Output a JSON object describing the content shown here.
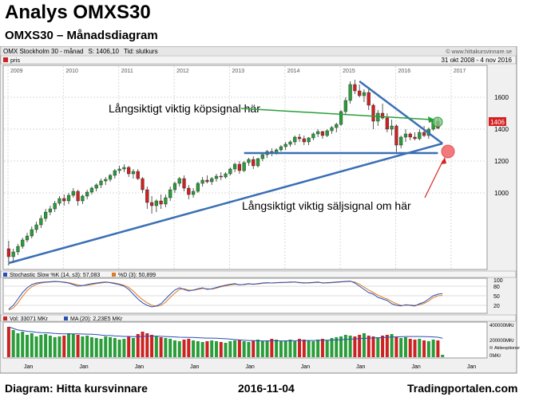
{
  "heading": {
    "title": "Analys OMXS30",
    "subtitle": "OMXS30 – Månadsdiagram"
  },
  "footer": {
    "left": "Diagram: Hitta kursvinnare",
    "center": "2016-11-04",
    "right": "Tradingportalen.com"
  },
  "chart_header": {
    "instrument": "OMX Stockholm 30",
    "period": "månad",
    "s_label": "S:",
    "s_value": "1406,10",
    "tid_label": "Tid:",
    "tid_value": "slutkurs",
    "watermark": "© www.hittakursvinnare.se",
    "date_range": "31 okt 2008 - 4 nov 2016",
    "series_label": "pris"
  },
  "annotations": {
    "buy": "Långsiktigt viktig köpsignal här",
    "sell": "Långsiktigt viktig säljsignal om här"
  },
  "colors": {
    "up": "#2a9d3a",
    "down": "#cc2222",
    "trendline": "#3a6fb5",
    "buy_arrow": "#2a9d3a",
    "sell_arrow": "#dd2222",
    "price_tag": "#d62020"
  },
  "chart_data": {
    "type": "candlestick",
    "years": [
      "2009",
      "2010",
      "2011",
      "2012",
      "2013",
      "2014",
      "2015",
      "2016",
      "2017"
    ],
    "y_ticks": [
      1000,
      1200,
      1400,
      1600
    ],
    "ylim": [
      520,
      1800
    ],
    "last_price": "1406",
    "x_month_labels": [
      "Jan",
      "Jan",
      "Jan",
      "Jan",
      "Jan",
      "Jan",
      "Jan",
      "Jan",
      "Jan"
    ],
    "ohlc": [
      [
        650,
        700,
        545,
        600
      ],
      [
        600,
        650,
        560,
        630
      ],
      [
        630,
        680,
        610,
        665
      ],
      [
        665,
        720,
        650,
        705
      ],
      [
        705,
        750,
        690,
        730
      ],
      [
        730,
        790,
        715,
        770
      ],
      [
        770,
        820,
        750,
        800
      ],
      [
        800,
        860,
        780,
        840
      ],
      [
        840,
        900,
        820,
        880
      ],
      [
        880,
        920,
        860,
        900
      ],
      [
        900,
        950,
        880,
        935
      ],
      [
        935,
        980,
        920,
        965
      ],
      [
        965,
        990,
        920,
        950
      ],
      [
        950,
        1000,
        930,
        985
      ],
      [
        985,
        1030,
        970,
        1010
      ],
      [
        1010,
        1020,
        920,
        950
      ],
      [
        950,
        990,
        930,
        980
      ],
      [
        980,
        1020,
        960,
        1005
      ],
      [
        1005,
        1040,
        990,
        1030
      ],
      [
        1030,
        1060,
        1010,
        1050
      ],
      [
        1050,
        1090,
        1030,
        1075
      ],
      [
        1075,
        1100,
        1050,
        1085
      ],
      [
        1085,
        1120,
        1070,
        1110
      ],
      [
        1110,
        1150,
        1090,
        1140
      ],
      [
        1140,
        1170,
        1120,
        1150
      ],
      [
        1150,
        1180,
        1130,
        1160
      ],
      [
        1160,
        1170,
        1100,
        1120
      ],
      [
        1120,
        1150,
        1090,
        1135
      ],
      [
        1135,
        1150,
        1080,
        1090
      ],
      [
        1090,
        1100,
        1000,
        1020
      ],
      [
        1020,
        1040,
        900,
        940
      ],
      [
        940,
        980,
        870,
        920
      ],
      [
        920,
        960,
        880,
        950
      ],
      [
        950,
        990,
        900,
        930
      ],
      [
        930,
        990,
        910,
        970
      ],
      [
        970,
        1040,
        950,
        1020
      ],
      [
        1020,
        1070,
        1000,
        1060
      ],
      [
        1060,
        1100,
        1040,
        1090
      ],
      [
        1090,
        1110,
        1010,
        1030
      ],
      [
        1030,
        1050,
        960,
        990
      ],
      [
        990,
        1030,
        970,
        1010
      ],
      [
        1010,
        1070,
        1000,
        1060
      ],
      [
        1060,
        1100,
        1040,
        1080
      ],
      [
        1080,
        1110,
        1060,
        1070
      ],
      [
        1070,
        1100,
        1050,
        1090
      ],
      [
        1090,
        1120,
        1070,
        1105
      ],
      [
        1105,
        1130,
        1080,
        1100
      ],
      [
        1100,
        1130,
        1090,
        1120
      ],
      [
        1120,
        1160,
        1110,
        1150
      ],
      [
        1150,
        1190,
        1130,
        1180
      ],
      [
        1180,
        1200,
        1120,
        1140
      ],
      [
        1140,
        1200,
        1130,
        1190
      ],
      [
        1190,
        1220,
        1170,
        1210
      ],
      [
        1210,
        1230,
        1150,
        1170
      ],
      [
        1170,
        1220,
        1160,
        1215
      ],
      [
        1215,
        1250,
        1200,
        1240
      ],
      [
        1240,
        1270,
        1220,
        1260
      ],
      [
        1260,
        1280,
        1230,
        1250
      ],
      [
        1250,
        1280,
        1240,
        1270
      ],
      [
        1270,
        1300,
        1260,
        1290
      ],
      [
        1290,
        1320,
        1270,
        1305
      ],
      [
        1305,
        1330,
        1290,
        1320
      ],
      [
        1320,
        1360,
        1300,
        1350
      ],
      [
        1350,
        1370,
        1320,
        1340
      ],
      [
        1340,
        1360,
        1300,
        1320
      ],
      [
        1320,
        1350,
        1300,
        1345
      ],
      [
        1345,
        1380,
        1330,
        1370
      ],
      [
        1370,
        1400,
        1350,
        1385
      ],
      [
        1385,
        1390,
        1340,
        1360
      ],
      [
        1360,
        1400,
        1350,
        1390
      ],
      [
        1390,
        1420,
        1370,
        1410
      ],
      [
        1410,
        1440,
        1380,
        1430
      ],
      [
        1430,
        1520,
        1420,
        1510
      ],
      [
        1510,
        1600,
        1490,
        1580
      ],
      [
        1580,
        1700,
        1560,
        1680
      ],
      [
        1680,
        1710,
        1620,
        1640
      ],
      [
        1640,
        1680,
        1600,
        1610
      ],
      [
        1610,
        1650,
        1570,
        1630
      ],
      [
        1630,
        1650,
        1520,
        1550
      ],
      [
        1550,
        1560,
        1400,
        1450
      ],
      [
        1450,
        1520,
        1420,
        1500
      ],
      [
        1500,
        1560,
        1460,
        1470
      ],
      [
        1470,
        1500,
        1380,
        1400
      ],
      [
        1400,
        1460,
        1360,
        1420
      ],
      [
        1420,
        1430,
        1250,
        1300
      ],
      [
        1300,
        1360,
        1280,
        1350
      ],
      [
        1350,
        1400,
        1320,
        1370
      ],
      [
        1370,
        1380,
        1330,
        1350
      ],
      [
        1350,
        1380,
        1330,
        1340
      ],
      [
        1340,
        1400,
        1330,
        1380
      ],
      [
        1380,
        1420,
        1350,
        1360
      ],
      [
        1360,
        1410,
        1340,
        1400
      ],
      [
        1400,
        1460,
        1390,
        1450
      ],
      [
        1450,
        1470,
        1400,
        1406
      ]
    ],
    "trendlines": [
      {
        "name": "long_support",
        "from": [
          0,
          560
        ],
        "to": [
          94,
          1310
        ]
      },
      {
        "name": "falling_resistance",
        "from": [
          76,
          1700
        ],
        "to": [
          94,
          1310
        ]
      },
      {
        "name": "horizontal_support",
        "from": [
          51,
          1250
        ],
        "to": [
          93,
          1250
        ]
      }
    ],
    "stochastic": {
      "label_k": "Stochastic Slow %K (14, s3): 57,083",
      "label_d": "%D (3): 50,899",
      "y_ticks": [
        20,
        50,
        80,
        100
      ],
      "k": [
        8,
        20,
        40,
        60,
        75,
        85,
        90,
        92,
        93,
        94,
        95,
        94,
        92,
        90,
        85,
        80,
        82,
        85,
        88,
        90,
        92,
        93,
        91,
        88,
        85,
        80,
        70,
        55,
        40,
        28,
        20,
        15,
        18,
        25,
        40,
        55,
        68,
        75,
        70,
        65,
        68,
        72,
        75,
        70,
        72,
        76,
        80,
        83,
        86,
        88,
        84,
        86,
        88,
        86,
        88,
        90,
        91,
        90,
        91,
        92,
        92,
        93,
        93,
        91,
        90,
        91,
        92,
        93,
        90,
        91,
        92,
        93,
        94,
        95,
        96,
        90,
        80,
        70,
        60,
        55,
        45,
        40,
        35,
        25,
        20,
        18,
        22,
        20,
        18,
        25,
        30,
        40,
        50,
        55,
        57
      ],
      "d": [
        5,
        12,
        28,
        48,
        66,
        78,
        86,
        90,
        92,
        93,
        94,
        94,
        93,
        91,
        88,
        84,
        82,
        83,
        85,
        88,
        90,
        92,
        92,
        90,
        87,
        83,
        76,
        65,
        50,
        38,
        28,
        20,
        17,
        20,
        30,
        45,
        58,
        70,
        72,
        68,
        67,
        70,
        73,
        72,
        71,
        74,
        78,
        81,
        84,
        86,
        85,
        85,
        87,
        87,
        87,
        89,
        90,
        90,
        91,
        91,
        92,
        92,
        93,
        92,
        91,
        90,
        91,
        92,
        91,
        90,
        91,
        92,
        93,
        94,
        95,
        93,
        86,
        77,
        68,
        60,
        52,
        45,
        40,
        32,
        25,
        20,
        20,
        21,
        20,
        22,
        26,
        34,
        44,
        50,
        51
      ]
    },
    "volume": {
      "label_vol": "Vol: 33071 MKr",
      "label_ma": "MA (20): 2,23E5 MKr",
      "y_tick_top": "400000MKr",
      "y_tick_mid": "200000MKr",
      "y_label": "Aktieoptioner",
      "y_tick_bottom": "0MKr",
      "values": [
        380,
        340,
        300,
        320,
        280,
        300,
        260,
        280,
        290,
        270,
        250,
        260,
        270,
        300,
        290,
        280,
        260,
        270,
        250,
        240,
        230,
        260,
        250,
        240,
        220,
        230,
        260,
        240,
        290,
        320,
        300,
        280,
        260,
        250,
        240,
        230,
        210,
        200,
        220,
        230,
        210,
        200,
        190,
        200,
        210,
        200,
        190,
        180,
        200,
        210,
        220,
        200,
        190,
        210,
        220,
        200,
        210,
        230,
        220,
        200,
        210,
        220,
        200,
        230,
        220,
        210,
        200,
        220,
        230,
        210,
        240,
        250,
        260,
        280,
        270,
        260,
        280,
        300,
        270,
        260,
        250,
        270,
        280,
        290,
        260,
        240,
        250,
        230,
        220,
        230,
        210,
        200,
        220,
        210,
        30
      ]
    }
  }
}
